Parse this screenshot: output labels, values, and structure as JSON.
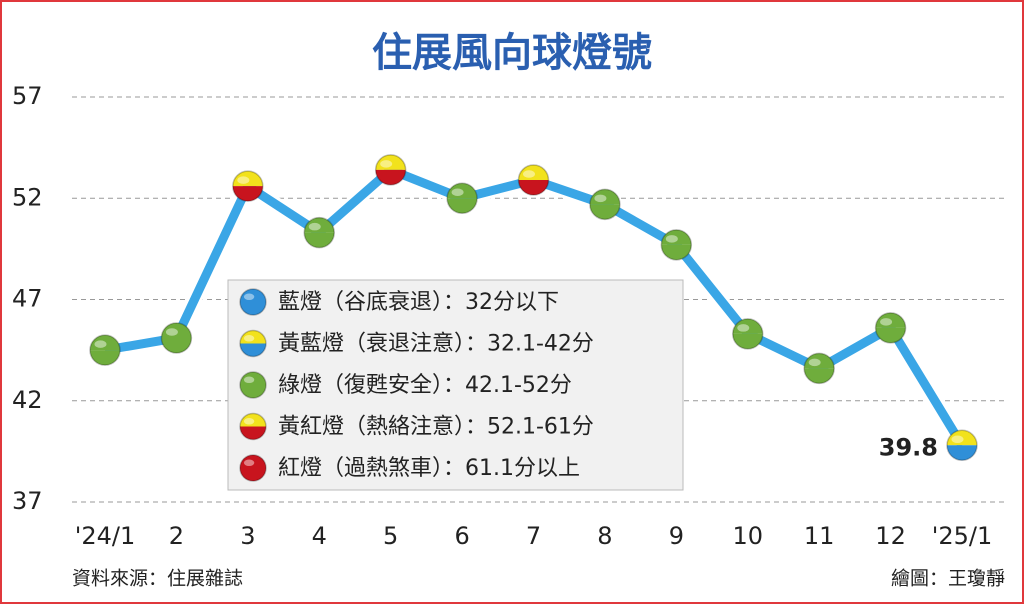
{
  "chart_data": {
    "type": "line",
    "title": "住展風向球燈號",
    "categories": [
      "'24/1",
      "2",
      "3",
      "4",
      "5",
      "6",
      "7",
      "8",
      "9",
      "10",
      "11",
      "12",
      "'25/1"
    ],
    "values": [
      44.5,
      45.1,
      52.6,
      50.3,
      53.4,
      52.0,
      52.9,
      51.7,
      49.7,
      45.3,
      43.6,
      45.6,
      39.8
    ],
    "color": "#3aa6e6",
    "ylim": [
      37,
      57
    ],
    "yticks": [
      37,
      42,
      47,
      52,
      57
    ],
    "grid": true,
    "legend": [
      {
        "label": "藍燈（谷底衰退）：32分以下",
        "colors": [
          "#2f8fd8",
          "#2f8fd8"
        ]
      },
      {
        "label": "黃藍燈（衰退注意）：32.1-42分",
        "colors": [
          "#f2e21c",
          "#2f8fd8"
        ]
      },
      {
        "label": "綠燈（復甦安全）：42.1-52分",
        "colors": [
          "#6fad3c",
          "#6fad3c"
        ]
      },
      {
        "label": "黃紅燈（熱絡注意）：52.1-61分",
        "colors": [
          "#f2e21c",
          "#c8141e"
        ]
      },
      {
        "label": "紅燈（過熱煞車）：61.1分以上",
        "colors": [
          "#c8141e",
          "#c8141e"
        ]
      }
    ],
    "point_legend": [
      2,
      2,
      3,
      2,
      3,
      2,
      3,
      2,
      2,
      2,
      2,
      2,
      1
    ],
    "data_label_index": 12,
    "source": "資料來源：住展雜誌",
    "credit": "繪圖：王瓊靜"
  }
}
